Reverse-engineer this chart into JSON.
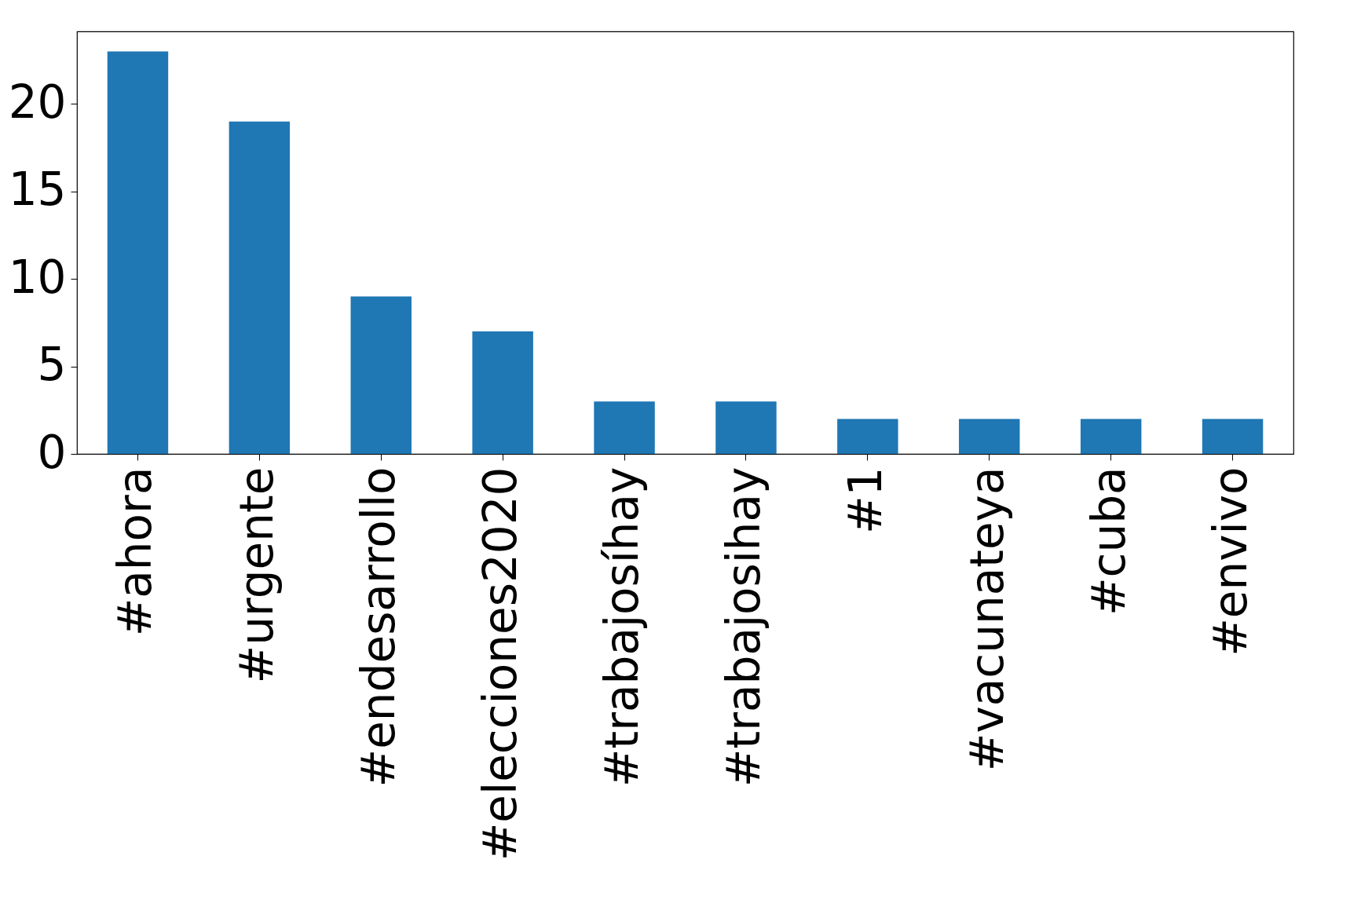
{
  "chart_data": {
    "type": "bar",
    "categories": [
      "#ahora",
      "#urgente",
      "#endesarrollo",
      "#elecciones2020",
      "#trabajosíhay",
      "#trabajosihay",
      "#1",
      "#vacunateya",
      "#cuba",
      "#envivo"
    ],
    "values": [
      23,
      19,
      9,
      7,
      3,
      3,
      2,
      2,
      2,
      2
    ],
    "color": "#1f77b4",
    "ylim": [
      0,
      24.15
    ],
    "yticks": [
      0,
      5,
      10,
      15,
      20
    ],
    "grid": false
  }
}
